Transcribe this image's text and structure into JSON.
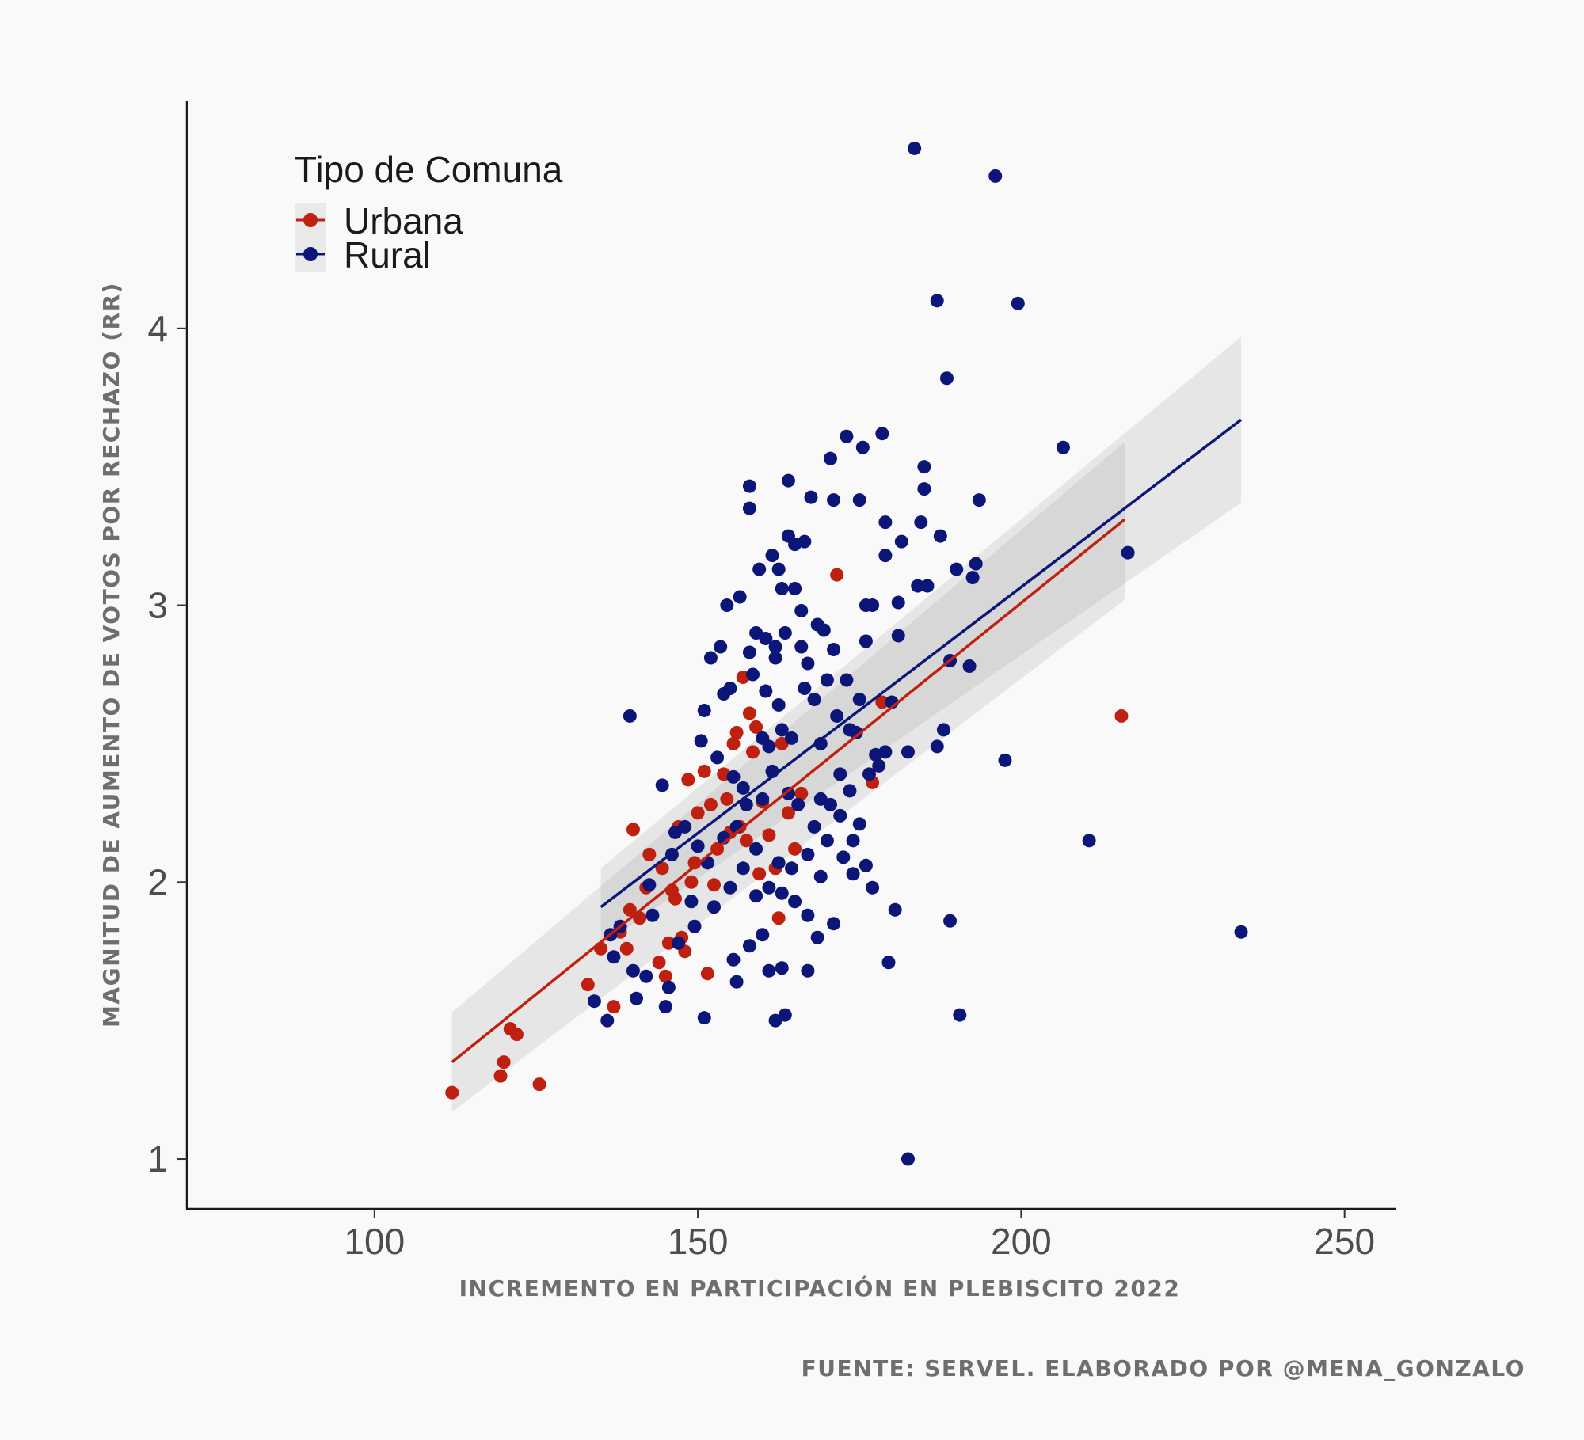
{
  "chart_data": {
    "type": "scatter",
    "xlabel": "INCREMENTO EN PARTICIPACIÓN EN PLEBISCITO 2022",
    "ylabel": "MAGNITUD DE AUMENTO DE VOTOS POR RECHAZO (RR)",
    "caption": "FUENTE: SERVEL. ELABORADO POR @MENA_GONZALO",
    "xlim": [
      71,
      258
    ],
    "ylim": [
      0.82,
      4.82
    ],
    "x_ticks": [
      100,
      150,
      200,
      250
    ],
    "y_ticks": [
      1,
      2,
      3,
      4
    ],
    "x_tick_labels": [
      "100",
      "150",
      "200",
      "250"
    ],
    "y_tick_labels": [
      "1",
      "2",
      "3",
      "4"
    ],
    "grid": false,
    "legend": {
      "title": "Tipo de Comuna",
      "position": "top-left",
      "entries": [
        {
          "label": "Urbana",
          "color": "#c0200f"
        },
        {
          "label": "Rural",
          "color": "#0c1679"
        }
      ]
    },
    "series": [
      {
        "name": "Urbana",
        "color": "#c0200f",
        "fit": {
          "x": [
            112,
            216
          ],
          "y": [
            1.35,
            3.31
          ],
          "ci_low": [
            1.17,
            3.02
          ],
          "ci_high": [
            1.53,
            3.59
          ]
        },
        "points": [
          [
            112,
            1.24
          ],
          [
            119.5,
            1.3
          ],
          [
            120,
            1.35
          ],
          [
            121,
            1.47
          ],
          [
            122,
            1.45
          ],
          [
            125.5,
            1.27
          ],
          [
            133,
            1.63
          ],
          [
            135,
            1.76
          ],
          [
            137,
            1.55
          ],
          [
            138,
            1.82
          ],
          [
            139,
            1.76
          ],
          [
            139.5,
            1.9
          ],
          [
            140,
            2.19
          ],
          [
            141,
            1.87
          ],
          [
            142,
            1.98
          ],
          [
            142.5,
            2.1
          ],
          [
            144,
            1.71
          ],
          [
            144.5,
            2.05
          ],
          [
            145,
            1.66
          ],
          [
            145.5,
            1.78
          ],
          [
            146,
            1.97
          ],
          [
            146.5,
            1.94
          ],
          [
            147,
            2.2
          ],
          [
            147.5,
            1.8
          ],
          [
            148,
            1.75
          ],
          [
            148.5,
            2.37
          ],
          [
            149,
            2.0
          ],
          [
            149.5,
            2.07
          ],
          [
            150,
            2.25
          ],
          [
            151,
            2.4
          ],
          [
            151.5,
            1.67
          ],
          [
            152,
            2.28
          ],
          [
            152.5,
            1.99
          ],
          [
            153,
            2.12
          ],
          [
            154,
            2.39
          ],
          [
            154.5,
            2.3
          ],
          [
            155,
            2.18
          ],
          [
            155.5,
            2.5
          ],
          [
            156,
            2.54
          ],
          [
            156.5,
            2.2
          ],
          [
            157,
            2.74
          ],
          [
            157.5,
            2.15
          ],
          [
            158,
            2.61
          ],
          [
            158.5,
            2.47
          ],
          [
            159,
            2.56
          ],
          [
            159.5,
            2.03
          ],
          [
            160,
            2.29
          ],
          [
            161,
            2.17
          ],
          [
            162,
            2.05
          ],
          [
            162.5,
            1.87
          ],
          [
            163,
            2.5
          ],
          [
            164,
            2.25
          ],
          [
            165,
            2.12
          ],
          [
            166,
            2.32
          ],
          [
            171.5,
            3.11
          ],
          [
            177,
            2.36
          ],
          [
            178.5,
            2.65
          ],
          [
            215.5,
            2.6
          ]
        ]
      },
      {
        "name": "Rural",
        "color": "#0c1679",
        "fit": {
          "x": [
            135,
            234
          ],
          "y": [
            1.91,
            3.67
          ],
          "ci_low": [
            1.77,
            3.37
          ],
          "ci_high": [
            2.05,
            3.97
          ]
        },
        "points": [
          [
            134,
            1.57
          ],
          [
            136,
            1.5
          ],
          [
            136.5,
            1.81
          ],
          [
            137,
            1.73
          ],
          [
            138,
            1.84
          ],
          [
            139.5,
            2.6
          ],
          [
            140,
            1.68
          ],
          [
            140.5,
            1.58
          ],
          [
            142,
            1.66
          ],
          [
            142.5,
            1.99
          ],
          [
            143,
            1.88
          ],
          [
            144.5,
            2.35
          ],
          [
            145,
            1.55
          ],
          [
            145.5,
            1.62
          ],
          [
            146,
            2.1
          ],
          [
            146.5,
            2.18
          ],
          [
            147,
            1.78
          ],
          [
            148,
            2.2
          ],
          [
            149,
            1.93
          ],
          [
            149.5,
            1.84
          ],
          [
            150,
            2.13
          ],
          [
            150.5,
            2.51
          ],
          [
            151,
            1.51
          ],
          [
            151,
            2.62
          ],
          [
            151.5,
            2.07
          ],
          [
            152,
            2.81
          ],
          [
            152.5,
            1.91
          ],
          [
            153,
            2.45
          ],
          [
            153.5,
            2.85
          ],
          [
            154,
            2.68
          ],
          [
            154,
            2.16
          ],
          [
            154.5,
            3.0
          ],
          [
            155,
            1.98
          ],
          [
            155,
            2.7
          ],
          [
            155.5,
            1.72
          ],
          [
            155.5,
            2.38
          ],
          [
            156,
            2.2
          ],
          [
            156,
            1.64
          ],
          [
            156.5,
            3.03
          ],
          [
            157,
            2.05
          ],
          [
            157,
            2.34
          ],
          [
            157.5,
            2.28
          ],
          [
            158,
            3.43
          ],
          [
            158,
            3.35
          ],
          [
            158,
            2.83
          ],
          [
            158,
            1.77
          ],
          [
            158.5,
            2.75
          ],
          [
            159,
            1.95
          ],
          [
            159,
            2.9
          ],
          [
            159,
            2.12
          ],
          [
            159.5,
            3.13
          ],
          [
            160,
            2.52
          ],
          [
            160,
            2.3
          ],
          [
            160,
            1.81
          ],
          [
            160.5,
            2.69
          ],
          [
            160.5,
            2.88
          ],
          [
            161,
            2.49
          ],
          [
            161,
            1.98
          ],
          [
            161,
            1.68
          ],
          [
            161.5,
            3.18
          ],
          [
            161.5,
            2.4
          ],
          [
            162,
            2.81
          ],
          [
            162,
            1.5
          ],
          [
            162,
            2.85
          ],
          [
            162.5,
            2.64
          ],
          [
            162.5,
            2.07
          ],
          [
            162.5,
            3.13
          ],
          [
            163,
            2.55
          ],
          [
            163,
            1.96
          ],
          [
            163,
            3.06
          ],
          [
            163,
            1.69
          ],
          [
            163.5,
            2.9
          ],
          [
            163.5,
            1.52
          ],
          [
            164,
            3.45
          ],
          [
            164,
            2.32
          ],
          [
            164,
            3.25
          ],
          [
            164.5,
            2.05
          ],
          [
            164.5,
            2.52
          ],
          [
            165,
            1.93
          ],
          [
            165,
            3.22
          ],
          [
            165,
            3.06
          ],
          [
            165.5,
            2.28
          ],
          [
            166,
            2.98
          ],
          [
            166,
            2.85
          ],
          [
            166.5,
            2.7
          ],
          [
            166.5,
            3.23
          ],
          [
            167,
            2.1
          ],
          [
            167,
            1.88
          ],
          [
            167,
            2.79
          ],
          [
            167,
            1.68
          ],
          [
            167.5,
            3.39
          ],
          [
            168,
            2.66
          ],
          [
            168,
            2.2
          ],
          [
            168.5,
            2.93
          ],
          [
            168.5,
            1.8
          ],
          [
            169,
            2.5
          ],
          [
            169,
            2.3
          ],
          [
            169,
            2.02
          ],
          [
            169.5,
            2.91
          ],
          [
            170,
            2.73
          ],
          [
            170,
            2.15
          ],
          [
            170.5,
            3.53
          ],
          [
            170.5,
            2.28
          ],
          [
            171,
            3.38
          ],
          [
            171,
            1.85
          ],
          [
            171,
            2.84
          ],
          [
            171.5,
            2.6
          ],
          [
            172,
            2.39
          ],
          [
            172,
            2.24
          ],
          [
            172.5,
            2.09
          ],
          [
            173,
            3.61
          ],
          [
            173,
            2.73
          ],
          [
            173.5,
            2.55
          ],
          [
            173.5,
            2.33
          ],
          [
            174,
            2.03
          ],
          [
            174,
            2.15
          ],
          [
            174.5,
            2.54
          ],
          [
            175,
            3.38
          ],
          [
            175,
            2.21
          ],
          [
            175,
            2.66
          ],
          [
            175.5,
            3.57
          ],
          [
            176,
            3.0
          ],
          [
            176,
            2.87
          ],
          [
            176,
            2.06
          ],
          [
            176.5,
            2.39
          ],
          [
            177,
            3.0
          ],
          [
            177,
            1.98
          ],
          [
            177.5,
            2.46
          ],
          [
            178,
            2.42
          ],
          [
            178.5,
            3.62
          ],
          [
            179,
            3.3
          ],
          [
            179,
            3.18
          ],
          [
            179,
            2.47
          ],
          [
            179.5,
            1.71
          ],
          [
            180,
            2.65
          ],
          [
            180.5,
            1.9
          ],
          [
            181,
            2.89
          ],
          [
            181,
            3.01
          ],
          [
            181.5,
            3.23
          ],
          [
            182.5,
            1.0
          ],
          [
            182.5,
            2.47
          ],
          [
            183.5,
            4.65
          ],
          [
            184,
            3.07
          ],
          [
            184.5,
            3.3
          ],
          [
            185,
            3.42
          ],
          [
            185,
            3.5
          ],
          [
            185.5,
            3.07
          ],
          [
            187,
            4.1
          ],
          [
            187,
            2.49
          ],
          [
            187.5,
            3.25
          ],
          [
            188,
            2.55
          ],
          [
            188.5,
            3.82
          ],
          [
            189,
            1.86
          ],
          [
            189,
            2.8
          ],
          [
            190,
            3.13
          ],
          [
            190.5,
            1.52
          ],
          [
            192,
            2.78
          ],
          [
            192.5,
            3.1
          ],
          [
            193,
            3.15
          ],
          [
            193.5,
            3.38
          ],
          [
            196,
            4.55
          ],
          [
            197.5,
            2.44
          ],
          [
            199.5,
            4.09
          ],
          [
            206.5,
            3.57
          ],
          [
            210.5,
            2.15
          ],
          [
            216.5,
            3.19
          ],
          [
            234,
            1.82
          ]
        ]
      }
    ]
  }
}
